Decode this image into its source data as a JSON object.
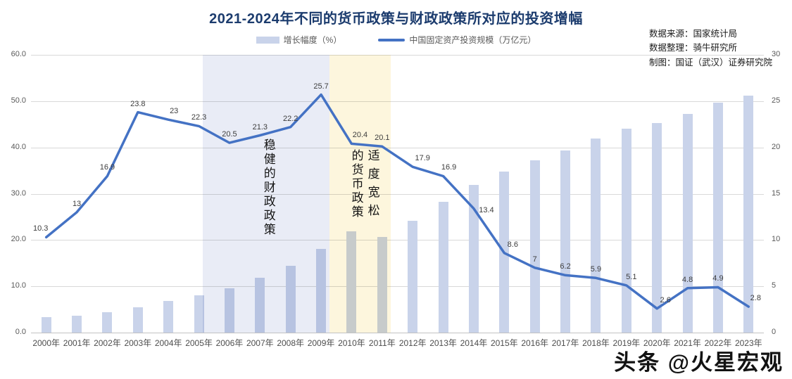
{
  "source": {
    "lines": [
      "数据来源：国家统计局",
      "数据整理：骑牛研究所",
      "制图：国证（武汉）证券研究院"
    ]
  },
  "watermark": "头条 @火星宏观",
  "colors": {
    "bar": "#c9d3ea",
    "line": "#4472c4",
    "title": "#1c3c6e",
    "region_fiscal": "#e9ecf6",
    "region_monetary": "#fdf6dd",
    "gridline": "#d9d9d9"
  },
  "chart_data": {
    "type": "bar",
    "title": "2021-2024年不同的货币政策与财政政策所对应的投资增幅",
    "categories": [
      "2000年",
      "2001年",
      "2002年",
      "2003年",
      "2004年",
      "2005年",
      "2006年",
      "2007年",
      "2008年",
      "2009年",
      "2010年",
      "2011年",
      "2012年",
      "2013年",
      "2014年",
      "2015年",
      "2016年",
      "2017年",
      "2018年",
      "2019年",
      "2020年",
      "2021年",
      "2022年",
      "2023年"
    ],
    "series": [
      {
        "name": "增长幅度（%）",
        "type": "bar",
        "axis": "left",
        "values": [
          3.3,
          3.7,
          4.4,
          5.5,
          6.8,
          8.1,
          9.6,
          11.8,
          14.5,
          18.1,
          21.9,
          20.6,
          24.1,
          28.2,
          31.9,
          34.8,
          37.2,
          39.4,
          41.9,
          44,
          45.3,
          47.3,
          49.7,
          51.2
        ]
      },
      {
        "name": "中国固定资产投资规模（万亿元）",
        "type": "line",
        "axis": "right",
        "values": [
          10.3,
          13,
          16.9,
          23.8,
          23,
          22.3,
          20.5,
          21.3,
          22.2,
          25.7,
          20.4,
          20.1,
          17.9,
          16.9,
          13.4,
          8.6,
          7,
          6.2,
          5.9,
          5.1,
          2.6,
          4.8,
          4.9,
          2.8
        ],
        "labels": [
          "10.3",
          "13",
          "16.9",
          "23.8",
          "23",
          "22.3",
          "20.5",
          "21.3",
          "22.2",
          "25.7",
          "20.4",
          "20.1",
          "17.9",
          "16.9",
          "13.4",
          "8.6",
          "7",
          "6.2",
          "5.9",
          "5.1",
          "2.6",
          "4.8",
          "4.9",
          "2.8"
        ]
      }
    ],
    "left_axis": {
      "min": 0,
      "max": 60,
      "ticks": [
        "60.0",
        "50.0",
        "40.0",
        "30.0",
        "20.0",
        "10.0",
        "0.0"
      ]
    },
    "right_axis": {
      "min": 0,
      "max": 30,
      "ticks": [
        "30",
        "25",
        "20",
        "15",
        "10",
        "5",
        "0"
      ]
    },
    "grid": true,
    "legend_position": "top",
    "annotations": [
      {
        "text": "稳健的财政政策",
        "columns": [
          "稳健的财政政策"
        ],
        "span_categories": "2005年-2009年"
      },
      {
        "text": "适度宽松的货币政策",
        "columns": [
          "适度宽松",
          "的货币政策"
        ],
        "span_categories": "2009年-2011年"
      }
    ]
  }
}
